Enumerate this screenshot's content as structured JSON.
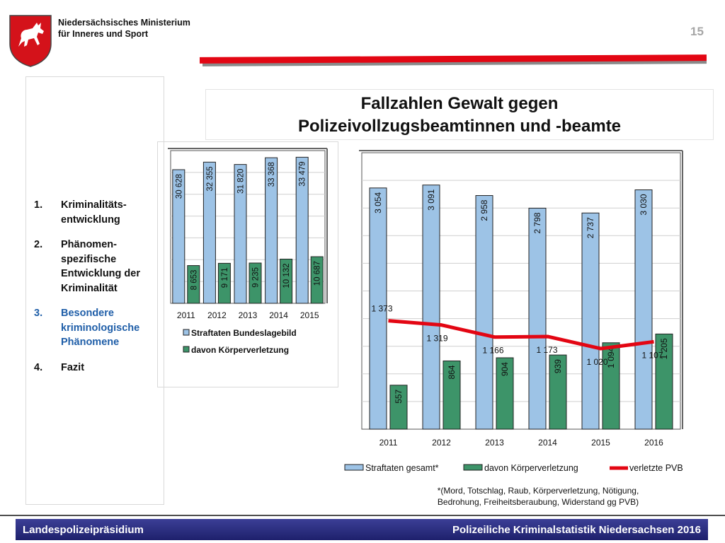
{
  "header": {
    "ministry_line1": "Niedersächsisches Ministerium",
    "ministry_line2": "für Inneres und Sport",
    "page_number": "15",
    "accent_color": "#e30613"
  },
  "title": {
    "line1": "Fallzahlen Gewalt gegen",
    "line2": "Polizeivollzugsbeamtinnen und -beamte"
  },
  "agenda": [
    {
      "num": "1.",
      "text": "Kriminalitäts- entwicklung",
      "active": false
    },
    {
      "num": "2.",
      "text": "Phänomen- spezifische Entwicklung der Kriminalität",
      "active": false
    },
    {
      "num": "3.",
      "text": "Besondere kriminologische Phänomene",
      "active": true
    },
    {
      "num": "4.",
      "text": "Fazit",
      "active": false
    }
  ],
  "chart_data": [
    {
      "type": "bar",
      "categories": [
        "2011",
        "2012",
        "2013",
        "2014",
        "2015"
      ],
      "series": [
        {
          "name": "Straftaten Bundeslagebild",
          "values": [
            30628,
            32355,
            31820,
            33368,
            33479
          ],
          "labels": [
            "30 628",
            "32 355",
            "31 820",
            "33 368",
            "33 479"
          ],
          "color": "#9dc3e6"
        },
        {
          "name": "davon Körperverletzung",
          "values": [
            8653,
            9171,
            9235,
            10132,
            10687
          ],
          "labels": [
            "8 653",
            "9 171",
            "9 235",
            "10 132",
            "10 687"
          ],
          "color": "#3d9469"
        }
      ],
      "ylim": [
        0,
        35000
      ],
      "legend": "bottom",
      "grid": true
    },
    {
      "type": "bar",
      "categories": [
        "2011",
        "2012",
        "2013",
        "2014",
        "2015",
        "2016"
      ],
      "series": [
        {
          "name": "Straftaten gesamt*",
          "values": [
            3054,
            3091,
            2958,
            2798,
            2737,
            3030
          ],
          "labels": [
            "3 054",
            "3 091",
            "2 958",
            "2 798",
            "2 737",
            "3 030"
          ],
          "color": "#9dc3e6"
        },
        {
          "name": "davon Körperverletzung",
          "values": [
            557,
            864,
            904,
            939,
            1094,
            1205
          ],
          "labels": [
            "557",
            "864",
            "904",
            "939",
            "1 094",
            "1 205"
          ],
          "color": "#3d9469"
        },
        {
          "name": "verletzte PVB",
          "type": "line",
          "values": [
            1373,
            1319,
            1166,
            1173,
            1020,
            1107
          ],
          "labels": [
            "1 373",
            "1 319",
            "1 166",
            "1 173",
            "1 020",
            "1 107"
          ],
          "color": "#e30613"
        }
      ],
      "ylim": [
        0,
        3500
      ],
      "legend": "bottom",
      "grid": true
    }
  ],
  "footnote": {
    "line1": "*(Mord, Totschlag, Raub, Körperverletzung, Nötigung,",
    "line2": "Bedrohung, Freiheitsberaubung, Widerstand gg PVB)"
  },
  "footer": {
    "left": "Landespolizeipräsidium",
    "right": "Polizeiliche Kriminalstatistik Niedersachsen 2016"
  }
}
